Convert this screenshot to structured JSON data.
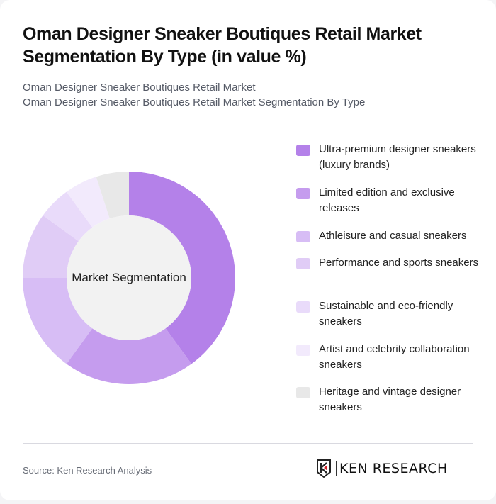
{
  "title": "Oman Designer Sneaker Boutiques Retail Market Segmentation By Type (in value %)",
  "subtitle_line1": "Oman Designer Sneaker Boutiques Retail Market",
  "subtitle_line2": "Oman Designer Sneaker Boutiques Retail Market Segmentation By Type",
  "center_label": "Market Segmentation",
  "legend": [
    {
      "label": "Ultra-premium designer sneakers (luxury brands)",
      "color": "#b481e9"
    },
    {
      "label": "Limited edition and exclusive releases",
      "color": "#c59cee"
    },
    {
      "label": "Athleisure and casual sneakers",
      "color": "#d7bdf5"
    },
    {
      "label": "Performance and sports sneakers",
      "color": "#e0ccf6"
    },
    {
      "label": "Sustainable and eco-friendly sneakers",
      "color": "#e9dbfa"
    },
    {
      "label": "Artist and celebrity collaboration sneakers",
      "color": "#f2eafc"
    },
    {
      "label": "Heritage and vintage designer sneakers",
      "color": "#e8e8e8"
    }
  ],
  "footer": {
    "source": "Source: Ken Research Analysis",
    "logo_text": "KEN RESEARCH"
  },
  "chart_data": {
    "type": "pie",
    "variant": "donut",
    "title": "Oman Designer Sneaker Boutiques Retail Market Segmentation By Type (in value %)",
    "center_label": "Market Segmentation",
    "categories": [
      "Ultra-premium designer sneakers (luxury brands)",
      "Limited edition and exclusive releases",
      "Athleisure and casual sneakers",
      "Performance and sports sneakers",
      "Sustainable and eco-friendly sneakers",
      "Artist and celebrity collaboration sneakers",
      "Heritage and vintage designer sneakers"
    ],
    "values": [
      40,
      20,
      15,
      10,
      5,
      5,
      5
    ],
    "colors": [
      "#b481e9",
      "#c59cee",
      "#d7bdf5",
      "#e0ccf6",
      "#e9dbfa",
      "#f2eafc",
      "#e8e8e8"
    ],
    "unit": "%",
    "start_angle": "12 o'clock, clockwise",
    "legend_position": "right"
  }
}
